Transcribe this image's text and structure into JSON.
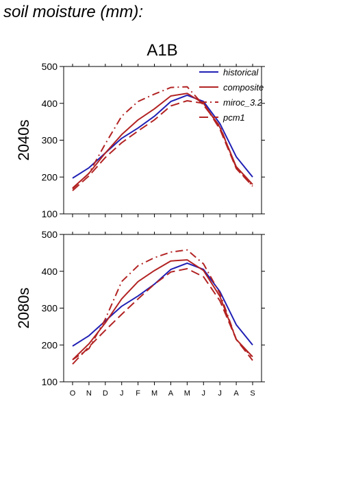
{
  "figure_title": "soil moisture (mm):",
  "scenario": "A1B",
  "chart_data": [
    {
      "type": "line",
      "ylabel": "2040s",
      "ylim": [
        100,
        500
      ],
      "yticks": [
        100,
        200,
        300,
        400,
        500
      ],
      "categories": [
        "O",
        "N",
        "D",
        "J",
        "F",
        "M",
        "A",
        "M",
        "J",
        "J",
        "A",
        "S"
      ],
      "legend": {
        "placement": "top-right"
      },
      "series": [
        {
          "name": "historical",
          "color": "#1f1fb4",
          "style": "solid",
          "values": [
            197,
            225,
            265,
            305,
            333,
            365,
            405,
            422,
            405,
            345,
            255,
            200
          ]
        },
        {
          "name": "composite",
          "color": "#b22222",
          "style": "solid",
          "values": [
            170,
            210,
            265,
            315,
            355,
            385,
            420,
            427,
            400,
            335,
            228,
            180
          ]
        },
        {
          "name": "miroc_3.2",
          "color": "#b22222",
          "style": "dashdot",
          "values": [
            168,
            210,
            290,
            365,
            405,
            425,
            443,
            445,
            395,
            338,
            225,
            175
          ]
        },
        {
          "name": "pcm1",
          "color": "#b22222",
          "style": "dashed",
          "values": [
            163,
            203,
            253,
            293,
            325,
            355,
            393,
            407,
            400,
            330,
            223,
            175
          ]
        }
      ]
    },
    {
      "type": "line",
      "ylabel": "2080s",
      "ylim": [
        100,
        500
      ],
      "yticks": [
        100,
        200,
        300,
        400,
        500
      ],
      "categories": [
        "O",
        "N",
        "D",
        "J",
        "F",
        "M",
        "A",
        "M",
        "J",
        "J",
        "A",
        "S"
      ],
      "series": [
        {
          "name": "historical",
          "color": "#1f1fb4",
          "style": "solid",
          "values": [
            197,
            225,
            265,
            305,
            333,
            365,
            405,
            422,
            405,
            345,
            255,
            200
          ]
        },
        {
          "name": "composite",
          "color": "#b22222",
          "style": "solid",
          "values": [
            160,
            203,
            260,
            325,
            372,
            402,
            428,
            431,
            402,
            332,
            215,
            168
          ]
        },
        {
          "name": "miroc_3.2",
          "color": "#b22222",
          "style": "dashdot",
          "values": [
            160,
            190,
            270,
            372,
            415,
            437,
            452,
            458,
            420,
            340,
            215,
            165
          ]
        },
        {
          "name": "pcm1",
          "color": "#b22222",
          "style": "dashed",
          "values": [
            148,
            195,
            240,
            283,
            325,
            365,
            398,
            407,
            385,
            320,
            215,
            158
          ]
        }
      ]
    }
  ]
}
